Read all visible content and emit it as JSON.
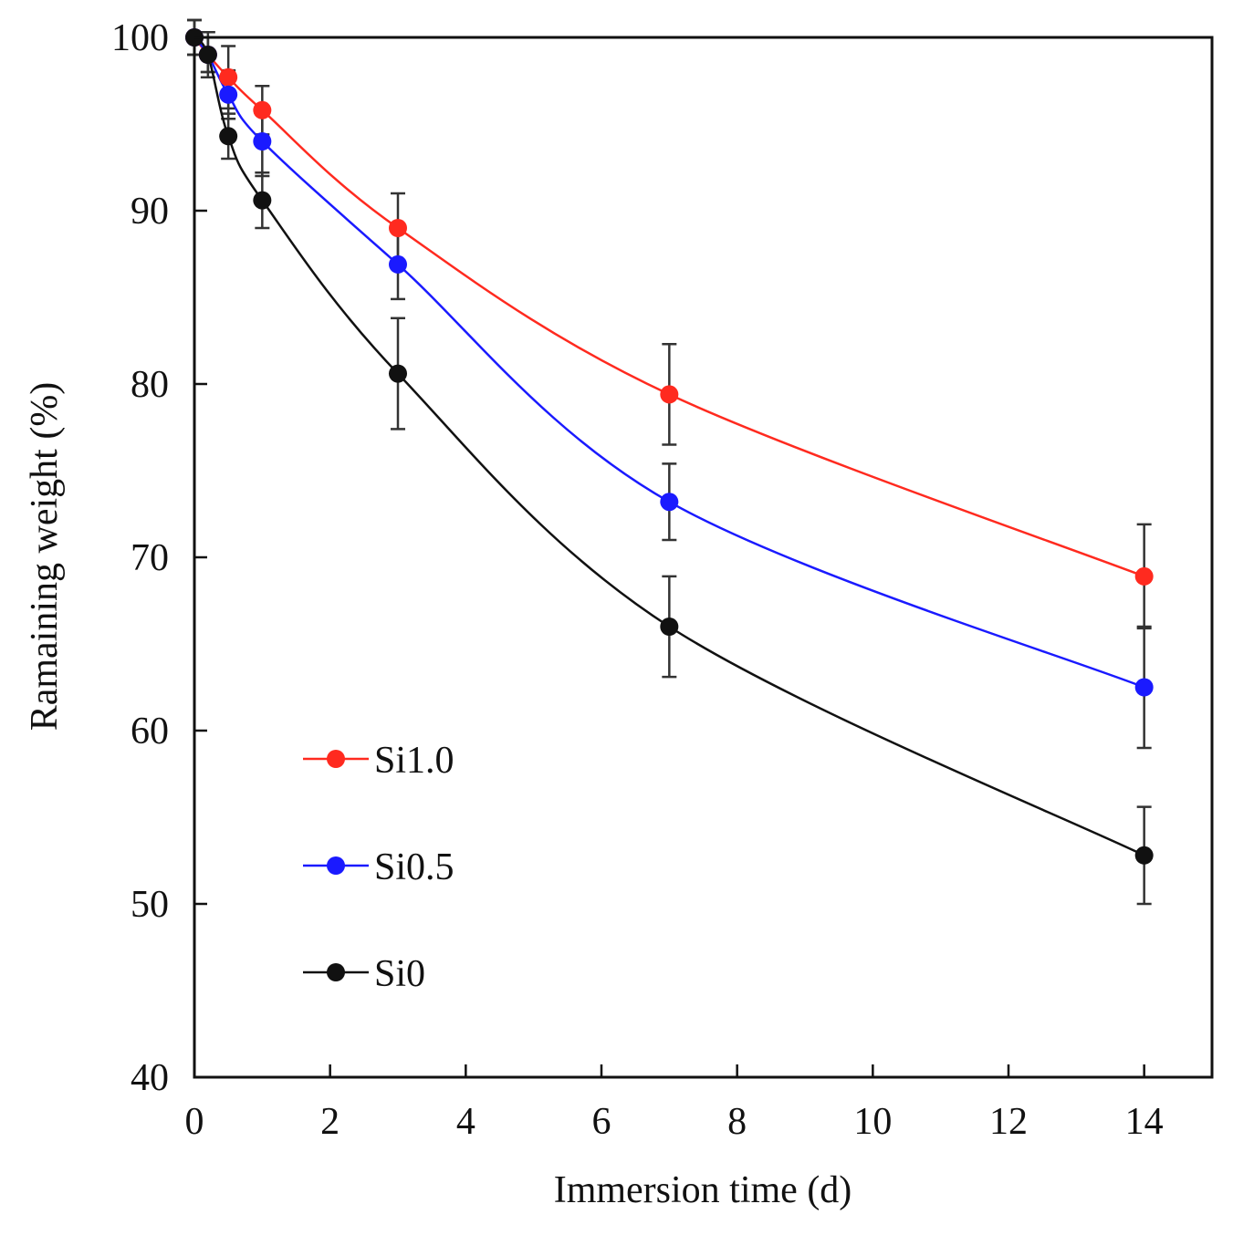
{
  "chart_data": {
    "type": "line",
    "title": "",
    "xlabel": "Immersion time (d)",
    "ylabel": "Ramaining weight (%)",
    "xlim": [
      0,
      15
    ],
    "ylim": [
      40,
      100
    ],
    "xticks": [
      0,
      2,
      4,
      6,
      8,
      10,
      12,
      14
    ],
    "yticks": [
      40,
      50,
      60,
      70,
      80,
      90,
      100
    ],
    "grid": false,
    "legend_position": "left-middle",
    "series": [
      {
        "name": "Si1.0",
        "color": "#ff2a1f",
        "x": [
          0,
          0.2,
          0.5,
          1,
          3,
          7,
          14
        ],
        "y": [
          100,
          99,
          97.7,
          95.8,
          89,
          79.4,
          68.9
        ],
        "err": [
          1.0,
          1.0,
          1.8,
          1.4,
          2.0,
          2.9,
          3.0
        ]
      },
      {
        "name": "Si0.5",
        "color": "#1a1aff",
        "x": [
          0,
          0.2,
          0.5,
          1,
          3,
          7,
          14
        ],
        "y": [
          100,
          99,
          96.7,
          94,
          86.9,
          73.2,
          62.5
        ],
        "err": [
          1.0,
          1.0,
          1.4,
          2.0,
          2.0,
          2.2,
          3.5
        ]
      },
      {
        "name": "Si0",
        "color": "#111111",
        "x": [
          0,
          0.2,
          0.5,
          1,
          3,
          7,
          14
        ],
        "y": [
          100,
          99,
          94.3,
          90.6,
          80.6,
          66,
          52.8
        ],
        "err": [
          1.0,
          1.3,
          1.3,
          1.6,
          3.2,
          2.9,
          2.8
        ]
      }
    ]
  }
}
